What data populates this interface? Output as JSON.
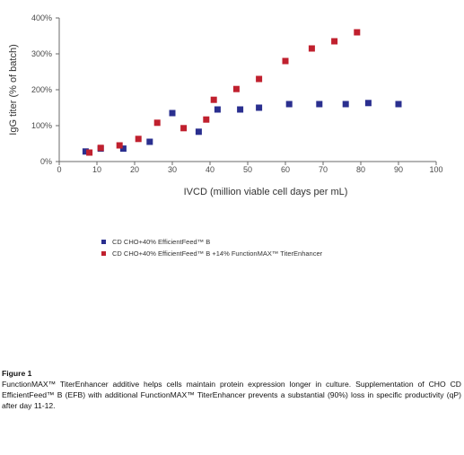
{
  "chart_data": {
    "type": "scatter",
    "xlabel": "IVCD (million viable cell days per mL)",
    "ylabel": "IgG titer (% of batch)",
    "xlim": [
      0,
      100
    ],
    "ylim": [
      0,
      400
    ],
    "xticks": [
      "0",
      "10",
      "20",
      "30",
      "40",
      "50",
      "60",
      "70",
      "80",
      "90",
      "100"
    ],
    "yticks": [
      "0%",
      "100%",
      "200%",
      "300%",
      "400%"
    ],
    "grid": false,
    "legend_placement": "below",
    "series": [
      {
        "name": "CD CHO+40% EfficientFeed™ B",
        "color": "#2a2f8f",
        "x": [
          7,
          11,
          17,
          24,
          30,
          37,
          42,
          48,
          53,
          61,
          69,
          76,
          82,
          90
        ],
        "y": [
          28,
          36,
          36,
          55,
          135,
          83,
          145,
          145,
          150,
          160,
          160,
          160,
          163,
          160
        ]
      },
      {
        "name": "CD CHO+40% EfficientFeed™ B +14% FunctionMAX™ TiterEnhancer",
        "color": "#c0202e",
        "x": [
          8,
          11,
          16,
          21,
          26,
          33,
          39,
          41,
          47,
          53,
          60,
          67,
          73,
          79
        ],
        "y": [
          25,
          38,
          45,
          63,
          108,
          93,
          117,
          172,
          202,
          230,
          280,
          315,
          335,
          360
        ]
      }
    ]
  },
  "caption": {
    "title": "Figure 1",
    "text": "FunctionMAX™ TiterEnhancer additive helps cells maintain protein expression longer in culture. Supplementation of CHO CD EfficientFeed™ B (EFB) with additional FunctionMAX™ TiterEnhancer prevents a substantial (90%) loss in specific productivity (qP) after day 11-12."
  }
}
